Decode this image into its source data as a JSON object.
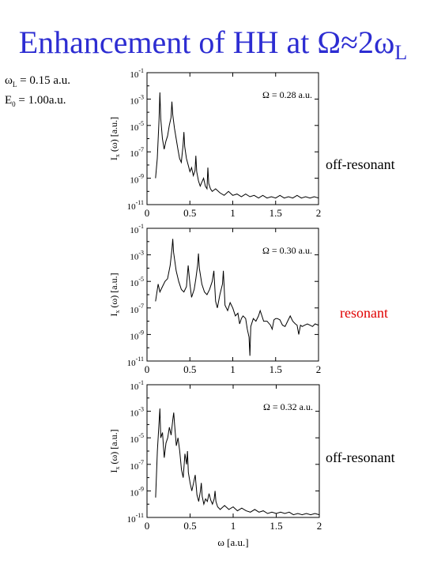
{
  "header": {
    "title_text": "Enhancement of HH at Ω≈2ω",
    "title_sub": "L",
    "title_color": "#2d2dd2"
  },
  "params": {
    "omega_symbol": "ω",
    "omega_sub": "L",
    "omega_value": "= 0.15 a.u.",
    "e_symbol": "E",
    "e_sub": "0",
    "e_value": "= 1.00a.u."
  },
  "labels": {
    "panel1": "off-resonant",
    "panel2": "resonant",
    "panel3": "off-resonant",
    "resonant_color": "#e00000"
  },
  "chart_data": [
    {
      "type": "line",
      "annotation": "Ω = 0.28 a.u.",
      "xlabel": "",
      "ylabel": "I_x (ω) [a.u.]",
      "xlim": [
        0,
        2
      ],
      "ylim_log10": [
        -11,
        -1
      ],
      "x_ticks": [
        "0",
        "0.5",
        "1",
        "1.5",
        "2"
      ],
      "y_ticks": [
        "10^-1",
        "10^-3",
        "10^-5",
        "10^-7",
        "10^-9",
        "10^-11"
      ],
      "log_y": true,
      "series": [
        {
          "x": [
            0.1,
            0.12,
            0.14,
            0.15,
            0.16,
            0.18,
            0.2,
            0.22,
            0.24,
            0.26,
            0.28,
            0.29,
            0.3,
            0.32,
            0.34,
            0.36,
            0.38,
            0.4,
            0.42,
            0.43,
            0.44,
            0.46,
            0.48,
            0.5,
            0.52,
            0.54,
            0.56,
            0.57,
            0.58,
            0.6,
            0.62,
            0.64,
            0.66,
            0.68,
            0.7,
            0.71,
            0.72,
            0.74,
            0.76,
            0.8,
            0.85,
            0.9,
            0.95,
            1.0,
            1.05,
            1.1,
            1.15,
            1.2,
            1.25,
            1.3,
            1.35,
            1.4,
            1.45,
            1.5,
            1.55,
            1.6,
            1.65,
            1.7,
            1.75,
            1.8,
            1.85,
            1.9,
            1.95,
            2.0
          ],
          "y_log10": [
            -9.0,
            -7.5,
            -4.6,
            -2.5,
            -4.5,
            -6.0,
            -6.8,
            -6.2,
            -5.8,
            -5.0,
            -4.4,
            -3.2,
            -4.2,
            -5.2,
            -6.0,
            -6.8,
            -7.5,
            -7.8,
            -6.5,
            -5.5,
            -6.6,
            -7.5,
            -8.0,
            -8.5,
            -8.2,
            -8.8,
            -8.4,
            -7.3,
            -8.5,
            -9.2,
            -9.6,
            -9.3,
            -9.0,
            -9.6,
            -9.8,
            -8.2,
            -9.4,
            -9.8,
            -10.0,
            -9.8,
            -10.1,
            -10.3,
            -10.0,
            -10.3,
            -10.2,
            -10.4,
            -10.2,
            -10.4,
            -10.3,
            -10.5,
            -10.3,
            -10.5,
            -10.4,
            -10.5,
            -10.3,
            -10.5,
            -10.4,
            -10.5,
            -10.3,
            -10.5,
            -10.4,
            -10.5,
            -10.4,
            -10.5
          ]
        }
      ]
    },
    {
      "type": "line",
      "annotation": "Ω = 0.30 a.u.",
      "xlabel": "",
      "ylabel": "I_x (ω) [a.u.]",
      "xlim": [
        0,
        2
      ],
      "ylim_log10": [
        -11,
        -1
      ],
      "x_ticks": [
        "0",
        "0.5",
        "1",
        "1.5",
        "2"
      ],
      "y_ticks": [
        "10^-1",
        "10^-3",
        "10^-5",
        "10^-7",
        "10^-9",
        "10^-11"
      ],
      "log_y": true,
      "series": [
        {
          "x": [
            0.1,
            0.13,
            0.15,
            0.18,
            0.21,
            0.24,
            0.27,
            0.29,
            0.3,
            0.31,
            0.34,
            0.37,
            0.4,
            0.43,
            0.46,
            0.48,
            0.5,
            0.52,
            0.55,
            0.57,
            0.59,
            0.6,
            0.61,
            0.64,
            0.67,
            0.7,
            0.73,
            0.76,
            0.78,
            0.8,
            0.82,
            0.85,
            0.88,
            0.89,
            0.9,
            0.91,
            0.94,
            0.97,
            1.0,
            1.03,
            1.06,
            1.08,
            1.1,
            1.12,
            1.15,
            1.17,
            1.19,
            1.2,
            1.21,
            1.24,
            1.27,
            1.3,
            1.32,
            1.34,
            1.36,
            1.4,
            1.44,
            1.46,
            1.48,
            1.5,
            1.52,
            1.55,
            1.58,
            1.61,
            1.64,
            1.67,
            1.7,
            1.73,
            1.75,
            1.77,
            1.79,
            1.81,
            1.84,
            1.87,
            1.9,
            1.93,
            1.96,
            2.0
          ],
          "y_log10": [
            -6.5,
            -5.2,
            -5.8,
            -5.4,
            -5.0,
            -4.8,
            -3.8,
            -2.6,
            -1.8,
            -2.8,
            -4.2,
            -5.0,
            -5.6,
            -5.8,
            -5.4,
            -3.8,
            -5.2,
            -6.2,
            -5.6,
            -4.8,
            -3.8,
            -2.9,
            -4.0,
            -5.2,
            -5.8,
            -6.0,
            -5.6,
            -5.0,
            -4.2,
            -6.5,
            -7.0,
            -6.0,
            -5.2,
            -4.2,
            -5.4,
            -6.8,
            -7.2,
            -6.6,
            -7.0,
            -7.6,
            -7.4,
            -8.2,
            -7.8,
            -7.6,
            -7.8,
            -8.6,
            -9.2,
            -10.6,
            -8.4,
            -7.8,
            -8.0,
            -7.6,
            -7.2,
            -7.6,
            -8.0,
            -8.0,
            -8.3,
            -8.6,
            -7.9,
            -7.8,
            -7.8,
            -7.9,
            -8.3,
            -8.4,
            -8.0,
            -7.6,
            -8.0,
            -8.2,
            -8.3,
            -9.0,
            -8.3,
            -8.4,
            -8.3,
            -8.2,
            -8.3,
            -8.4,
            -8.2,
            -8.3
          ]
        }
      ]
    },
    {
      "type": "line",
      "annotation": "Ω = 0.32 a.u.",
      "xlabel": "ω [a.u.]",
      "ylabel": "I_x (ω) [a.u.]",
      "xlim": [
        0,
        2
      ],
      "ylim_log10": [
        -11,
        -1
      ],
      "x_ticks": [
        "0",
        "0.5",
        "1",
        "1.5",
        "2"
      ],
      "y_ticks": [
        "10^-1",
        "10^-3",
        "10^-5",
        "10^-7",
        "10^-9",
        "10^-11"
      ],
      "log_y": true,
      "series": [
        {
          "x": [
            0.1,
            0.12,
            0.14,
            0.15,
            0.16,
            0.18,
            0.2,
            0.22,
            0.24,
            0.26,
            0.28,
            0.3,
            0.31,
            0.32,
            0.34,
            0.36,
            0.38,
            0.4,
            0.42,
            0.44,
            0.46,
            0.47,
            0.48,
            0.5,
            0.52,
            0.54,
            0.56,
            0.58,
            0.6,
            0.62,
            0.63,
            0.64,
            0.66,
            0.68,
            0.7,
            0.72,
            0.74,
            0.76,
            0.78,
            0.79,
            0.8,
            0.82,
            0.85,
            0.9,
            0.95,
            1.0,
            1.05,
            1.1,
            1.15,
            1.2,
            1.25,
            1.3,
            1.35,
            1.4,
            1.45,
            1.5,
            1.55,
            1.6,
            1.65,
            1.7,
            1.75,
            1.8,
            1.85,
            1.9,
            1.95,
            2.0
          ],
          "y_log10": [
            -9.5,
            -6.0,
            -3.8,
            -2.8,
            -5.0,
            -4.6,
            -6.5,
            -5.4,
            -5.0,
            -4.2,
            -4.8,
            -3.6,
            -3.1,
            -4.0,
            -5.6,
            -5.0,
            -6.0,
            -7.4,
            -8.0,
            -6.2,
            -7.0,
            -6.0,
            -7.6,
            -8.4,
            -9.0,
            -8.4,
            -7.8,
            -9.3,
            -9.8,
            -9.0,
            -8.4,
            -9.4,
            -10.0,
            -9.6,
            -9.8,
            -9.2,
            -9.7,
            -10.0,
            -9.6,
            -9.0,
            -9.8,
            -10.2,
            -10.4,
            -10.1,
            -10.4,
            -10.2,
            -10.5,
            -10.3,
            -10.5,
            -10.6,
            -10.4,
            -10.6,
            -10.5,
            -10.7,
            -10.6,
            -10.7,
            -10.6,
            -10.7,
            -10.6,
            -10.8,
            -10.7,
            -10.8,
            -10.7,
            -10.8,
            -10.7,
            -10.8
          ]
        }
      ]
    }
  ]
}
